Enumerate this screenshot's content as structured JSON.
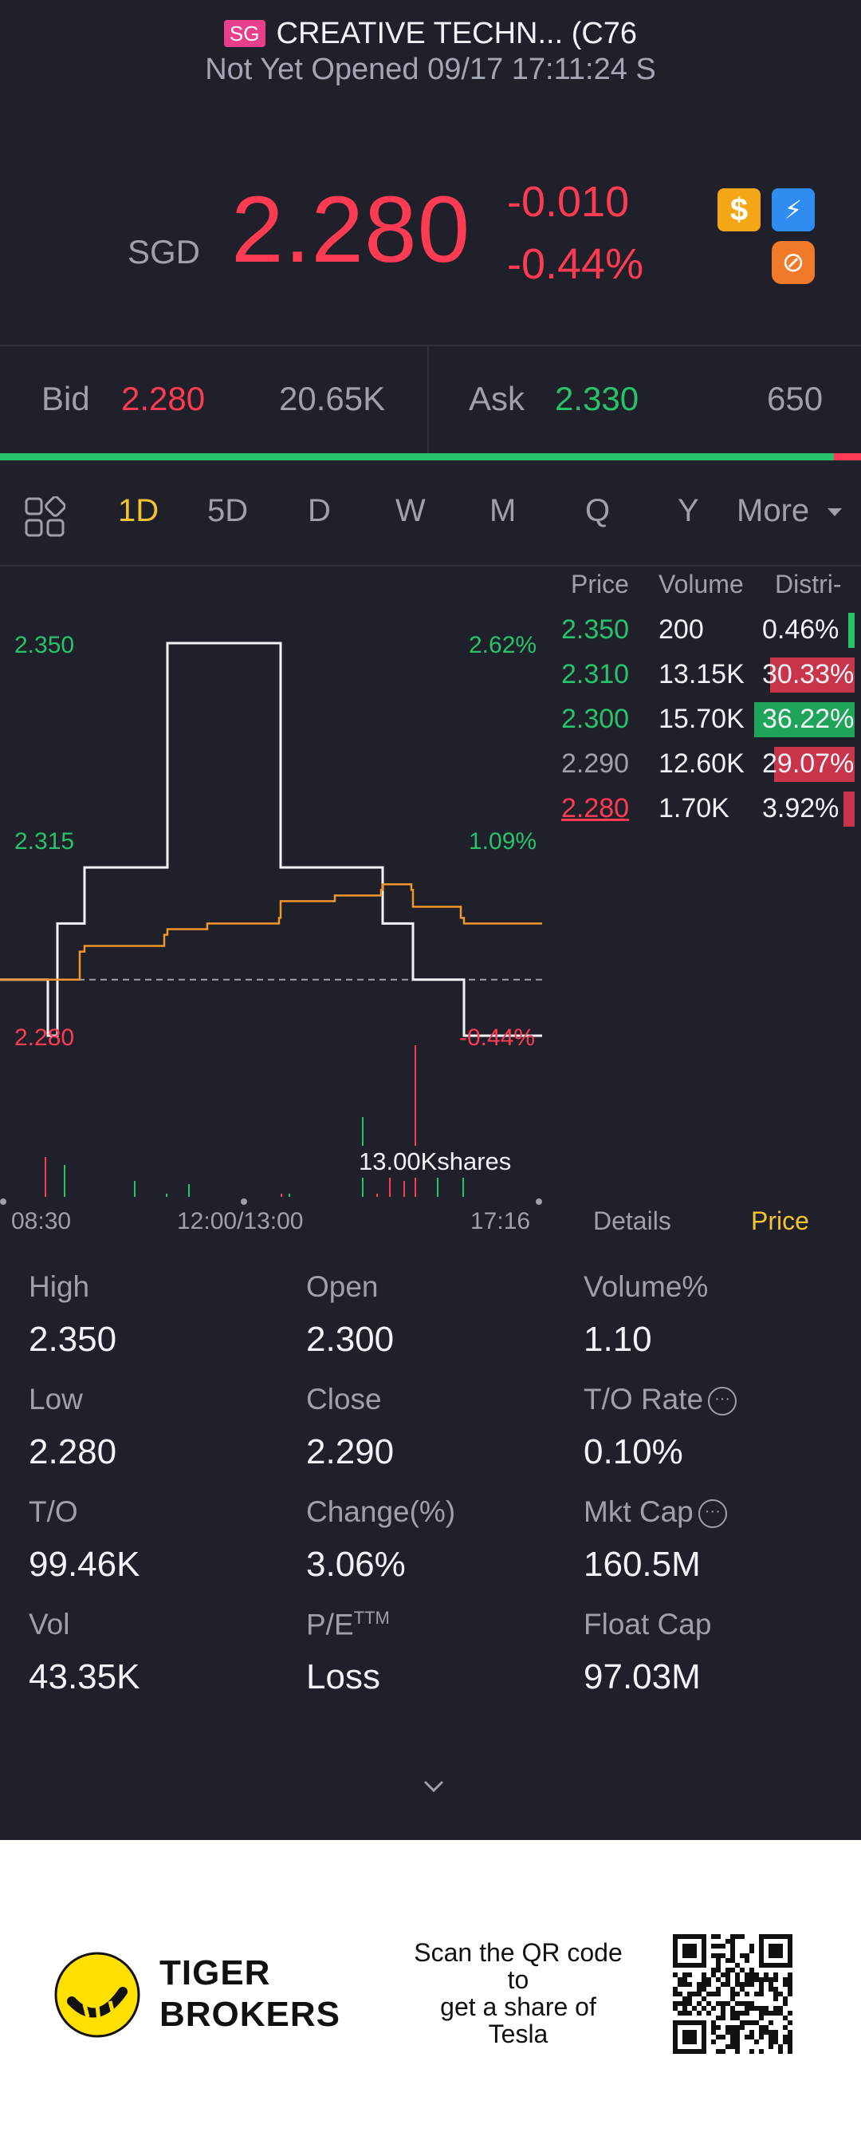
{
  "header": {
    "market_badge": "SG",
    "title": "CREATIVE TECHN... (C76",
    "status": "Not Yet Opened 09/17 17:11:24 S"
  },
  "quote": {
    "currency": "SGD",
    "last": "2.280",
    "change": "-0.010",
    "change_pct": "-0.44%",
    "icons": [
      "dollar-badge-icon",
      "flash-badge-icon",
      "options-badge-icon"
    ],
    "icon_glyphs": {
      "dollar": "$",
      "flash": "⚡",
      "option": "⊘"
    }
  },
  "bid_ask": {
    "bid_label": "Bid",
    "bid_price": "2.280",
    "bid_size": "20.65K",
    "ask_label": "Ask",
    "ask_price": "2.330",
    "ask_size": "650",
    "bid_share": 0.969
  },
  "tabs": {
    "items": [
      "1D",
      "5D",
      "D",
      "W",
      "M",
      "Q",
      "Y"
    ],
    "active": "1D",
    "more": "More"
  },
  "chart_labels": {
    "y_top_price": "2.350",
    "y_mid_price": "2.315",
    "y_low_price": "2.280",
    "y_top_pct": "2.62%",
    "y_mid_pct": "1.09%",
    "y_low_pct": "-0.44%",
    "volume_label": "13.00Kshares",
    "times": [
      "08:30",
      "12:00/13:00",
      "17:16"
    ]
  },
  "chart_data": {
    "type": "line",
    "title": "",
    "ylim": [
      2.28,
      2.35
    ],
    "prev_close": 2.29,
    "series": [
      {
        "values": [
          2.29,
          2.29,
          2.28,
          2.3,
          2.3,
          2.31,
          2.31,
          2.35,
          2.35,
          2.35,
          2.31,
          2.31,
          2.31,
          2.3,
          2.3,
          2.29,
          2.29,
          2.28,
          2.28
        ]
      },
      {
        "values": [
          2.29,
          2.29,
          2.29,
          2.29,
          2.295,
          2.296,
          2.298,
          2.299,
          2.3,
          2.301,
          2.304,
          2.305,
          2.306,
          2.307,
          2.306,
          2.303,
          2.301,
          2.3,
          2.3
        ]
      }
    ],
    "volume": [
      0.25,
      0.2,
      0.1,
      0.02,
      0.08,
      0.02,
      0.02,
      0.5,
      0.02,
      0.12,
      0.1,
      0.95,
      0.25,
      0.15
    ]
  },
  "distribution": {
    "headers": [
      "Price",
      "Volume",
      "Distri-"
    ],
    "rows": [
      {
        "price": "2.350",
        "volume": "200",
        "pct": "0.46%",
        "fill": 0.0046,
        "price_color": "#27c26a",
        "bar_color": "#27c26a"
      },
      {
        "price": "2.310",
        "volume": "13.15K",
        "pct": "30.33%",
        "fill": 0.3033,
        "price_color": "#27c26a",
        "bar_color": "#c8344a"
      },
      {
        "price": "2.300",
        "volume": "15.70K",
        "pct": "36.22%",
        "fill": 0.3622,
        "price_color": "#27c26a",
        "bar_color": "#1fa55a"
      },
      {
        "price": "2.290",
        "volume": "12.60K",
        "pct": "29.07%",
        "fill": 0.2907,
        "price_color": "#9ea1ad",
        "bar_color": "#c8344a"
      },
      {
        "price": "2.280",
        "volume": "1.70K",
        "pct": "3.92%",
        "fill": 0.0392,
        "price_color": "#ff3b53",
        "bar_color": "#c8344a"
      }
    ]
  },
  "side_tabs": {
    "details": "Details",
    "price": "Price"
  },
  "stats": [
    {
      "label": "High",
      "value": "2.350"
    },
    {
      "label": "Open",
      "value": "2.300"
    },
    {
      "label": "Volume%",
      "value": "1.10"
    },
    {
      "label": "Low",
      "value": "2.280"
    },
    {
      "label": "Close",
      "value": "2.290"
    },
    {
      "label": "T/O Rate",
      "value": "0.10%",
      "info": true
    },
    {
      "label": "T/O",
      "value": "99.46K"
    },
    {
      "label": "Change(%)",
      "value": "3.06%"
    },
    {
      "label": "Mkt Cap",
      "value": "160.5M",
      "info": true
    },
    {
      "label": "Vol",
      "value": "43.35K"
    },
    {
      "label": "P/E",
      "sup": "TTM",
      "value": "Loss"
    },
    {
      "label": "Float Cap",
      "value": "97.03M"
    }
  ],
  "info_glyph": "···",
  "footer": {
    "brand_line1": "TIGER",
    "brand_line2": "BROKERS",
    "scan_lines": [
      "Scan the QR code",
      "to",
      "get a share of",
      "Tesla"
    ]
  },
  "colors": {
    "up": "#27c26a",
    "down": "#ff3b53",
    "accent": "#f4c430",
    "background": "#1f2029"
  }
}
